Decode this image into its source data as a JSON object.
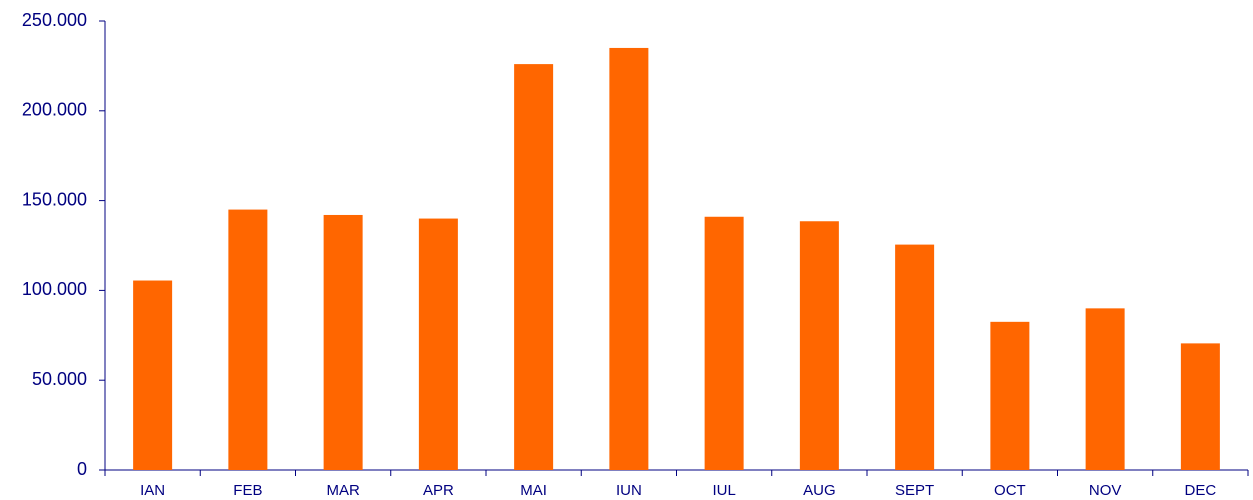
{
  "chart_data": {
    "type": "bar",
    "title": "",
    "xlabel": "",
    "ylabel": "",
    "categories": [
      "IAN",
      "FEB",
      "MAR",
      "APR",
      "MAI",
      "IUN",
      "IUL",
      "AUG",
      "SEPT",
      "OCT",
      "NOV",
      "DEC"
    ],
    "values": [
      105500,
      145000,
      142000,
      140000,
      226000,
      235000,
      141000,
      138500,
      125500,
      82500,
      90000,
      70500
    ],
    "ylim": [
      0,
      250000
    ],
    "yticks": [
      0,
      50000,
      100000,
      150000,
      200000,
      250000
    ],
    "ytick_labels": [
      "0",
      "50.000",
      "100.000",
      "150.000",
      "200.000",
      "250.000"
    ],
    "grid": false,
    "legend": "none",
    "colors": {
      "bar": "#ff6600",
      "axis": "#000080",
      "axis_text": "#000080"
    }
  }
}
